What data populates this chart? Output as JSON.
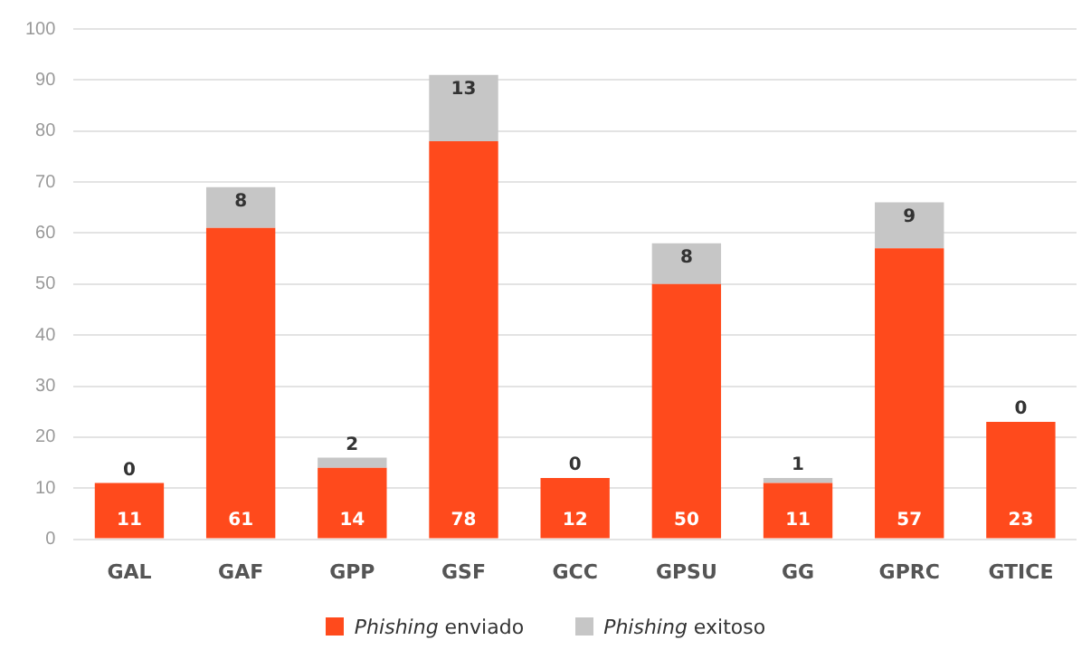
{
  "chart_data": {
    "type": "bar",
    "stacked": true,
    "categories": [
      "GAL",
      "GAF",
      "GPP",
      "GSF",
      "GCC",
      "GPSU",
      "GG",
      "GPRC",
      "GTICE"
    ],
    "series": [
      {
        "name": "Phishing enviado",
        "color": "#ff4a1c",
        "values": [
          11,
          61,
          14,
          78,
          12,
          50,
          11,
          57,
          23
        ]
      },
      {
        "name": "Phishing exitoso",
        "color": "#c6c6c6",
        "values": [
          0,
          8,
          2,
          13,
          0,
          8,
          1,
          9,
          0
        ]
      }
    ],
    "ylim": [
      0,
      100
    ],
    "yticks": [
      0,
      10,
      20,
      30,
      40,
      50,
      60,
      70,
      80,
      90,
      100
    ],
    "grid": "y",
    "legend": "bottom",
    "data_labels": true
  }
}
